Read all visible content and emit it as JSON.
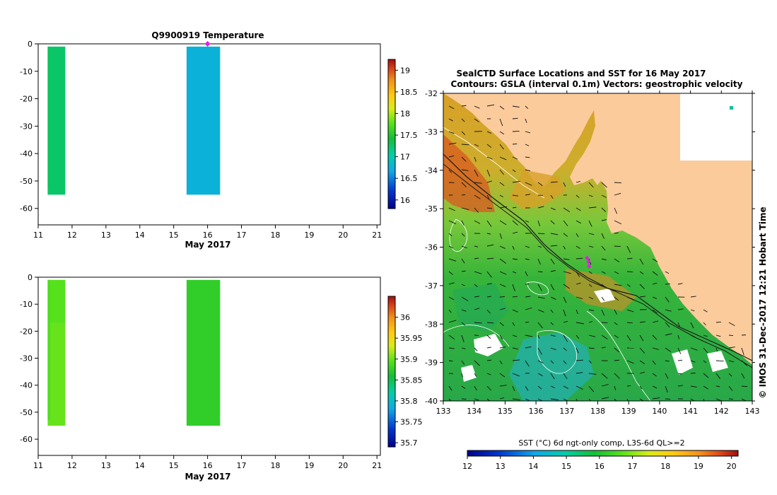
{
  "chart_data": [
    {
      "type": "heatmap",
      "panel": "profile-temperature",
      "title": "Q9900919  Temperature",
      "xlabel": "May 2017",
      "ylabel": "",
      "x_ticks": [
        11,
        12,
        13,
        14,
        15,
        16,
        17,
        18,
        19,
        20,
        21
      ],
      "y_ticks": [
        0,
        -10,
        -20,
        -30,
        -40,
        -50,
        -60
      ],
      "xlim": [
        11,
        21.1
      ],
      "ylim": [
        -66,
        0
      ],
      "profiles": [
        {
          "name": "profile-1a",
          "x": [
            11.28,
            11.8
          ],
          "segments": [
            {
              "top": -1,
              "bottom": -55,
              "value": 17.25
            }
          ]
        },
        {
          "name": "profile-1b",
          "x": [
            11.28,
            11.35
          ],
          "segments": [
            {
              "top": -1,
              "bottom": -53,
              "value": 17.3
            }
          ]
        },
        {
          "name": "profile-2",
          "x": [
            15.38,
            16.37
          ],
          "segments": [
            {
              "top": -1,
              "bottom": -55,
              "value": 16.75
            }
          ]
        }
      ],
      "marker": {
        "x": 16.0,
        "y": 0.0,
        "color": "#e020e0"
      },
      "colorbar": {
        "min": 15.8,
        "max": 19.25,
        "ticks": [
          16,
          16.5,
          17,
          17.5,
          18,
          18.5,
          19
        ]
      }
    },
    {
      "type": "heatmap",
      "panel": "profile-salinity",
      "title": "",
      "xlabel": "May 2017",
      "ylabel": "",
      "x_ticks": [
        11,
        12,
        13,
        14,
        15,
        16,
        17,
        18,
        19,
        20,
        21
      ],
      "y_ticks": [
        0,
        -10,
        -20,
        -30,
        -40,
        -50,
        -60
      ],
      "xlim": [
        11,
        21.1
      ],
      "ylim": [
        -66,
        0
      ],
      "profiles": [
        {
          "name": "profile-1a",
          "x": [
            11.28,
            11.8
          ],
          "segments": [
            {
              "top": -1,
              "bottom": -17,
              "value": 35.895
            },
            {
              "top": -17,
              "bottom": -55,
              "value": 35.9
            }
          ]
        },
        {
          "name": "profile-1b",
          "x": [
            11.28,
            11.35
          ],
          "segments": [
            {
              "top": -1,
              "bottom": -53,
              "value": 35.89
            }
          ]
        },
        {
          "name": "profile-2",
          "x": [
            15.38,
            16.37
          ],
          "segments": [
            {
              "top": -1,
              "bottom": -55,
              "value": 35.875
            }
          ]
        }
      ],
      "colorbar": {
        "min": 35.69,
        "max": 36.05,
        "ticks": [
          35.7,
          35.75,
          35.8,
          35.85,
          35.9,
          35.95,
          36
        ]
      }
    },
    {
      "type": "heatmap",
      "panel": "sst-map",
      "title": "SealCTD Surface Locations and SST for 16 May 2017",
      "subtitle": "Contours: GSLA (interval 0.1m) Vectors: geostrophic velocity",
      "x_ticks": [
        133,
        134,
        135,
        136,
        137,
        138,
        139,
        140,
        141,
        142,
        143
      ],
      "y_ticks": [
        -32,
        -33,
        -34,
        -35,
        -36,
        -37,
        -38,
        -39,
        -40
      ],
      "xlim": [
        133,
        143
      ],
      "ylim": [
        -40,
        -32
      ],
      "side_label": "© IMOS 31-Dec-2017 12:21 Hobart Time",
      "colorbar_label": "SST (°C) 6d ngt-only comp, L3S-6d QL>=2",
      "colorbar": {
        "min": 12,
        "max": 20.2,
        "ticks": [
          12,
          13,
          14,
          15,
          16,
          17,
          18,
          19,
          20
        ]
      },
      "seal_track": [
        [
          137.65,
          -36.28
        ],
        [
          137.7,
          -36.38
        ],
        [
          137.72,
          -36.5
        ]
      ],
      "track_color": "#e020e0",
      "land_color": "#fbcb9c"
    }
  ]
}
